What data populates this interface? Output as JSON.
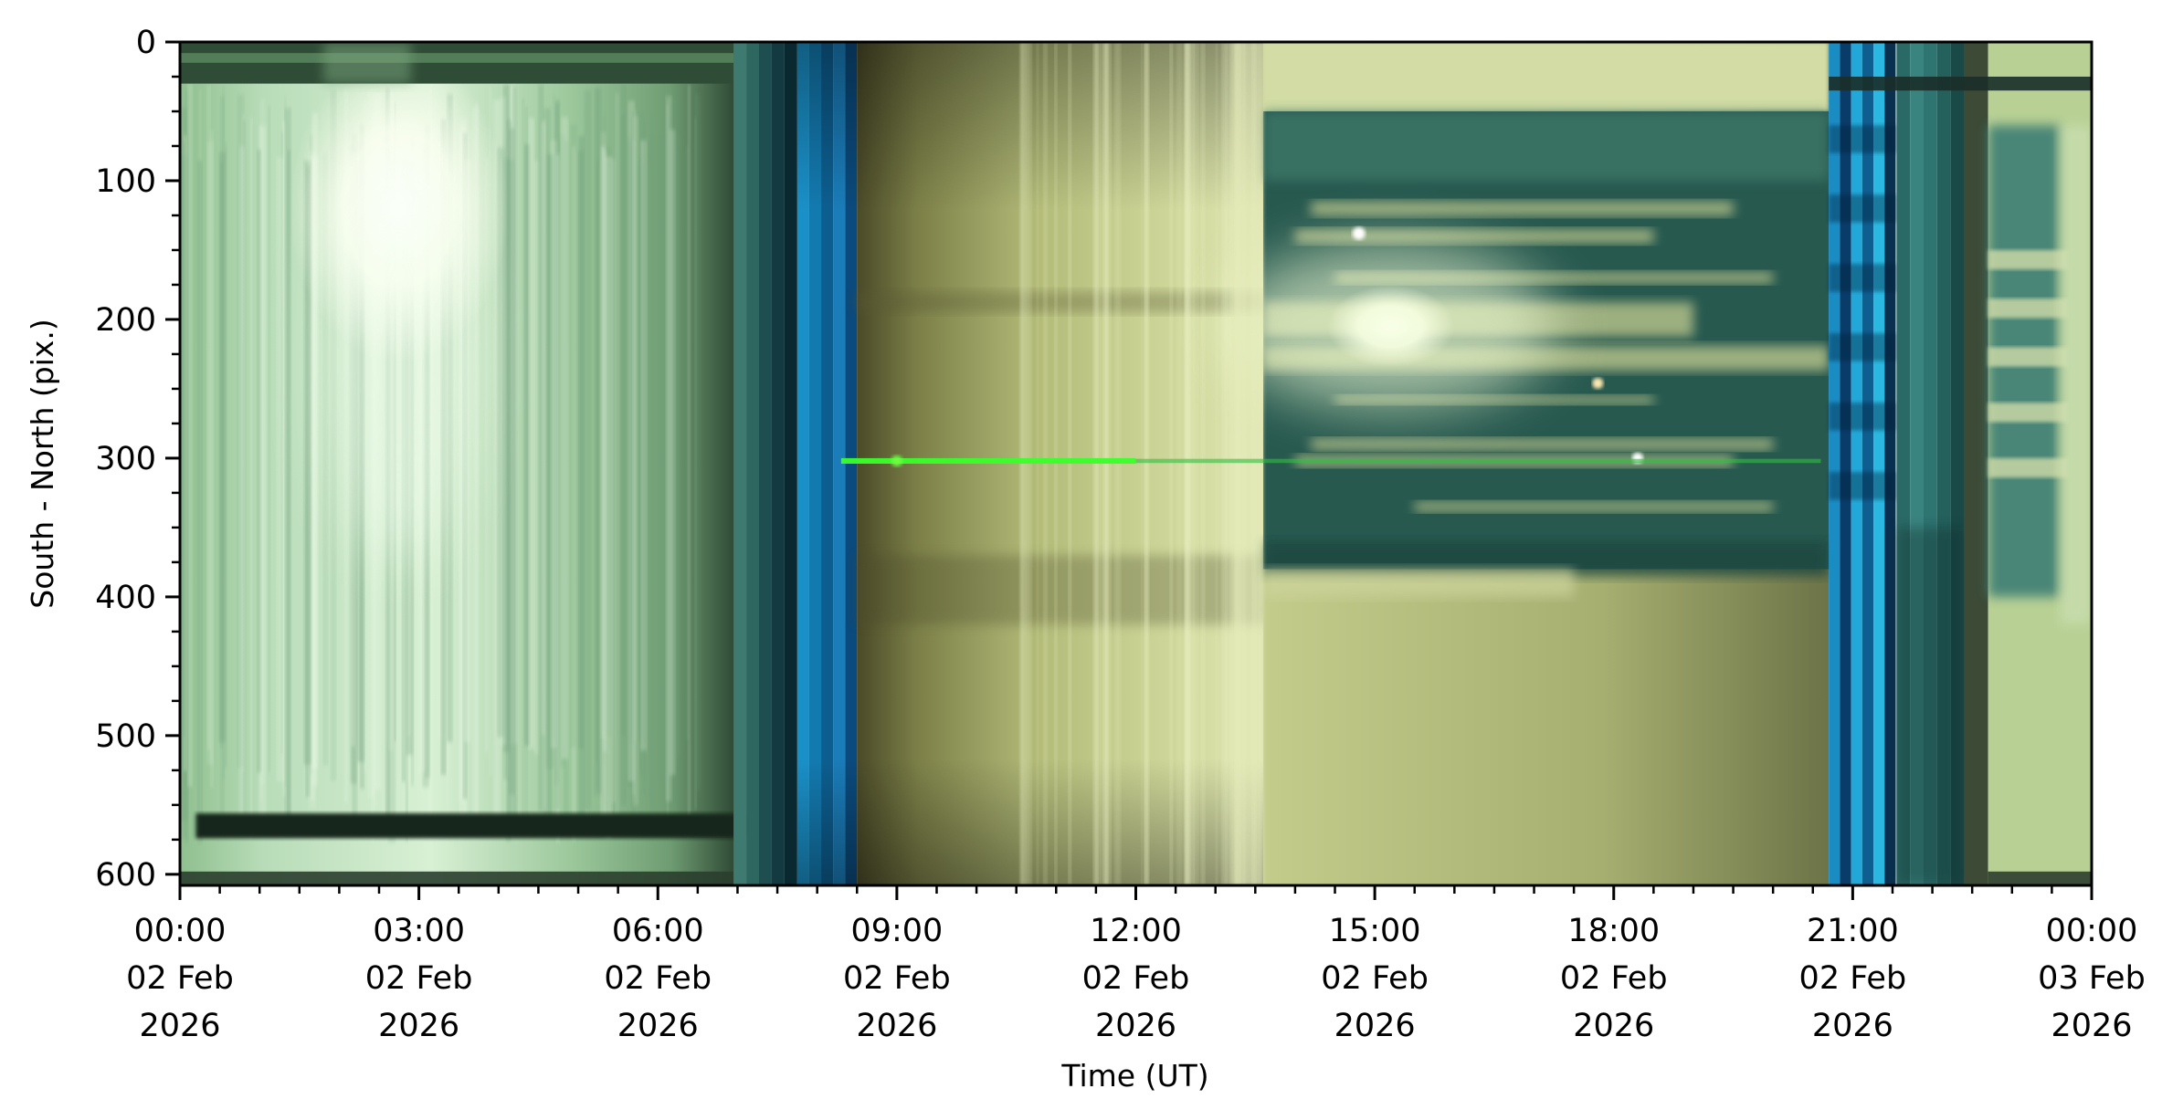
{
  "chart_data": {
    "type": "heatmap",
    "title": "",
    "xlabel": "Time (UT)",
    "ylabel": "South - North (pix.)",
    "x_range": [
      "2026-02-02T00:00",
      "2026-02-03T00:00"
    ],
    "ylim": [
      608,
      0
    ],
    "y_inverted": true,
    "grid": false,
    "x_ticks": [
      {
        "time": "00:00",
        "date": "02 Feb",
        "year": "2026",
        "hour": 0
      },
      {
        "time": "03:00",
        "date": "02 Feb",
        "year": "2026",
        "hour": 3
      },
      {
        "time": "06:00",
        "date": "02 Feb",
        "year": "2026",
        "hour": 6
      },
      {
        "time": "09:00",
        "date": "02 Feb",
        "year": "2026",
        "hour": 9
      },
      {
        "time": "12:00",
        "date": "02 Feb",
        "year": "2026",
        "hour": 12
      },
      {
        "time": "15:00",
        "date": "02 Feb",
        "year": "2026",
        "hour": 15
      },
      {
        "time": "18:00",
        "date": "02 Feb",
        "year": "2026",
        "hour": 18
      },
      {
        "time": "21:00",
        "date": "02 Feb",
        "year": "2026",
        "hour": 21
      },
      {
        "time": "00:00",
        "date": "03 Feb",
        "year": "2026",
        "hour": 24
      }
    ],
    "x_minor_step_hours": 0.5,
    "y_ticks": [
      "0",
      "100",
      "200",
      "300",
      "400",
      "500",
      "600"
    ],
    "y_minor_step": 25,
    "image_description_colors": {
      "pale_green": "#b4dcb4",
      "olive": "#a9b070",
      "dark_teal": "#24584f",
      "blue_stripe": "#1a8cc4",
      "green_line": "#39ff2a"
    }
  }
}
